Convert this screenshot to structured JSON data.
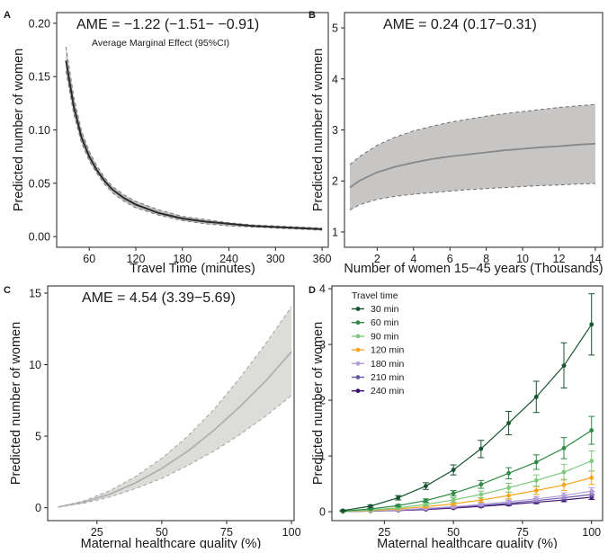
{
  "chart_data": [
    {
      "id": "A",
      "type": "line",
      "letter": "A",
      "title": "AME = −1.22 (−1.51− −0.91)",
      "subtitle": "Average Marginal Effect (95%CI)",
      "xlabel": "Travel Time (minutes)",
      "ylabel": "Predicted number of women",
      "xlim": [
        18,
        368
      ],
      "ylim": [
        -0.01,
        0.21
      ],
      "xticks": [
        60,
        120,
        180,
        240,
        300,
        360
      ],
      "yticks": [
        0.0,
        0.05,
        0.1,
        0.15,
        0.2
      ],
      "ytick_labels": [
        "0.00",
        "0.05",
        "0.10",
        "0.15",
        "0.20"
      ],
      "band": true,
      "series": [
        {
          "x": [
            30,
            40,
            50,
            60,
            70,
            80,
            90,
            105,
            120,
            150,
            180,
            210,
            240,
            270,
            300,
            330,
            360
          ],
          "y": [
            0.165,
            0.122,
            0.093,
            0.075,
            0.062,
            0.052,
            0.044,
            0.036,
            0.03,
            0.022,
            0.017,
            0.014,
            0.012,
            0.01,
            0.009,
            0.008,
            0.007
          ],
          "lower": [
            0.155,
            0.115,
            0.088,
            0.071,
            0.059,
            0.049,
            0.041,
            0.033,
            0.027,
            0.02,
            0.015,
            0.012,
            0.01,
            0.009,
            0.008,
            0.007,
            0.006
          ],
          "upper": [
            0.178,
            0.131,
            0.099,
            0.08,
            0.066,
            0.055,
            0.047,
            0.039,
            0.033,
            0.025,
            0.019,
            0.016,
            0.013,
            0.011,
            0.01,
            0.009,
            0.008
          ]
        }
      ],
      "colors": {
        "line": "#2b2b2b",
        "band": "#8c8c8c",
        "dash": "#777777"
      }
    },
    {
      "id": "B",
      "type": "area",
      "letter": "B",
      "title": "AME = 0.24 (0.17−0.31)",
      "xlabel": "Number of women 15−45 years (Thousands)",
      "ylabel": "Predicted number of women",
      "xlim": [
        0.2,
        14.4
      ],
      "ylim": [
        0.7,
        5.3
      ],
      "xticks": [
        2,
        4,
        6,
        8,
        10,
        12,
        14
      ],
      "yticks": [
        1,
        2,
        3,
        4,
        5
      ],
      "band": true,
      "series": [
        {
          "x": [
            0.5,
            1,
            2,
            3,
            4,
            5,
            6,
            7,
            8,
            9,
            10,
            11,
            12,
            13,
            14
          ],
          "y": [
            1.87,
            2.0,
            2.17,
            2.28,
            2.36,
            2.43,
            2.48,
            2.52,
            2.56,
            2.6,
            2.63,
            2.66,
            2.68,
            2.71,
            2.73
          ],
          "lower": [
            1.43,
            1.53,
            1.64,
            1.7,
            1.74,
            1.77,
            1.8,
            1.83,
            1.85,
            1.87,
            1.89,
            1.91,
            1.92,
            1.94,
            1.95
          ],
          "upper": [
            2.32,
            2.47,
            2.7,
            2.86,
            2.98,
            3.07,
            3.15,
            3.21,
            3.27,
            3.32,
            3.36,
            3.4,
            3.44,
            3.47,
            3.5
          ]
        }
      ],
      "colors": {
        "line": "#888888",
        "band": "#c8c5c5",
        "dash": "#6e6e6e"
      }
    },
    {
      "id": "C",
      "type": "area",
      "letter": "C",
      "title": "AME = 4.54 (3.39−5.69)",
      "xlabel": "Maternal healthcare quality (%)",
      "ylabel": "Predicted number of women",
      "xlim": [
        6,
        101
      ],
      "ylim": [
        -0.9,
        15.5
      ],
      "xticks": [
        25,
        50,
        75,
        100
      ],
      "yticks": [
        0,
        5,
        10,
        15
      ],
      "band": true,
      "series": [
        {
          "x": [
            10,
            20,
            30,
            40,
            50,
            60,
            70,
            80,
            90,
            100
          ],
          "y": [
            0.05,
            0.4,
            0.95,
            1.75,
            2.75,
            3.95,
            5.4,
            7.05,
            8.85,
            10.9
          ],
          "lower": [
            0.04,
            0.32,
            0.75,
            1.35,
            2.05,
            2.95,
            3.95,
            5.1,
            6.4,
            7.85
          ],
          "upper": [
            0.06,
            0.48,
            1.2,
            2.2,
            3.45,
            5.0,
            6.85,
            9.05,
            11.45,
            14.05
          ]
        }
      ],
      "colors": {
        "line": "#b0b0b0",
        "band": "#dcdcd9",
        "dash": "#a3a3a3"
      }
    },
    {
      "id": "D",
      "type": "line",
      "letter": "D",
      "xlabel": "Maternal healthcare quality (%)",
      "ylabel": "Predicted number of women",
      "xlim": [
        6,
        104
      ],
      "ylim": [
        -0.16,
        4.05
      ],
      "xticks": [
        25,
        50,
        75,
        100
      ],
      "yticks": [
        0,
        1,
        2,
        3,
        4
      ],
      "legend_title": "Travel time",
      "legend_position": "top-left",
      "x": [
        10,
        20,
        30,
        40,
        50,
        60,
        70,
        80,
        90,
        100
      ],
      "series": [
        {
          "name": "30 min",
          "color": "#17542f",
          "values": [
            0.02,
            0.1,
            0.25,
            0.46,
            0.75,
            1.13,
            1.59,
            2.06,
            2.62,
            3.36
          ],
          "lower": [
            0.01,
            0.08,
            0.21,
            0.4,
            0.66,
            0.97,
            1.38,
            1.78,
            2.22,
            2.81
          ],
          "upper": [
            0.03,
            0.12,
            0.29,
            0.52,
            0.84,
            1.28,
            1.8,
            2.34,
            3.03,
            3.91
          ]
        },
        {
          "name": "60 min",
          "color": "#2e8a45",
          "values": [
            0.01,
            0.05,
            0.11,
            0.2,
            0.33,
            0.49,
            0.69,
            0.89,
            1.14,
            1.46
          ],
          "lower": [
            0.005,
            0.04,
            0.09,
            0.17,
            0.28,
            0.42,
            0.59,
            0.76,
            0.95,
            1.21
          ],
          "upper": [
            0.015,
            0.06,
            0.13,
            0.23,
            0.38,
            0.56,
            0.79,
            1.02,
            1.33,
            1.71
          ]
        },
        {
          "name": "90 min",
          "color": "#7fc97f",
          "values": [
            0.005,
            0.03,
            0.07,
            0.13,
            0.21,
            0.31,
            0.43,
            0.56,
            0.71,
            0.91
          ],
          "lower": [
            0.003,
            0.02,
            0.05,
            0.1,
            0.17,
            0.25,
            0.35,
            0.46,
            0.57,
            0.73
          ],
          "upper": [
            0.008,
            0.04,
            0.09,
            0.16,
            0.25,
            0.37,
            0.51,
            0.66,
            0.85,
            1.09
          ]
        },
        {
          "name": "120 min",
          "color": "#f5a623",
          "values": [
            0.004,
            0.02,
            0.05,
            0.09,
            0.14,
            0.21,
            0.29,
            0.38,
            0.48,
            0.61
          ],
          "lower": [
            0.002,
            0.015,
            0.04,
            0.07,
            0.11,
            0.17,
            0.23,
            0.31,
            0.38,
            0.49
          ],
          "upper": [
            0.006,
            0.025,
            0.06,
            0.11,
            0.17,
            0.25,
            0.35,
            0.45,
            0.58,
            0.73
          ]
        },
        {
          "name": "180 min",
          "color": "#b39ddb",
          "values": [
            0.003,
            0.015,
            0.03,
            0.06,
            0.09,
            0.13,
            0.18,
            0.23,
            0.29,
            0.37
          ],
          "lower": [
            0.002,
            0.01,
            0.025,
            0.05,
            0.07,
            0.11,
            0.15,
            0.19,
            0.24,
            0.31
          ],
          "upper": [
            0.004,
            0.02,
            0.035,
            0.07,
            0.11,
            0.15,
            0.21,
            0.27,
            0.34,
            0.43
          ]
        },
        {
          "name": "210 min",
          "color": "#6a5aa6",
          "values": [
            0.002,
            0.012,
            0.026,
            0.05,
            0.08,
            0.11,
            0.15,
            0.2,
            0.25,
            0.31
          ],
          "lower": [
            0.001,
            0.009,
            0.02,
            0.04,
            0.065,
            0.09,
            0.125,
            0.165,
            0.21,
            0.26
          ],
          "upper": [
            0.003,
            0.015,
            0.032,
            0.06,
            0.095,
            0.13,
            0.175,
            0.235,
            0.29,
            0.36
          ]
        },
        {
          "name": "240 min",
          "color": "#3b0f70",
          "values": [
            0.002,
            0.01,
            0.022,
            0.04,
            0.065,
            0.095,
            0.13,
            0.17,
            0.21,
            0.26
          ],
          "lower": [
            0.001,
            0.008,
            0.018,
            0.033,
            0.055,
            0.08,
            0.11,
            0.145,
            0.18,
            0.22
          ],
          "upper": [
            0.003,
            0.012,
            0.026,
            0.047,
            0.075,
            0.11,
            0.15,
            0.195,
            0.24,
            0.3
          ]
        }
      ]
    }
  ]
}
